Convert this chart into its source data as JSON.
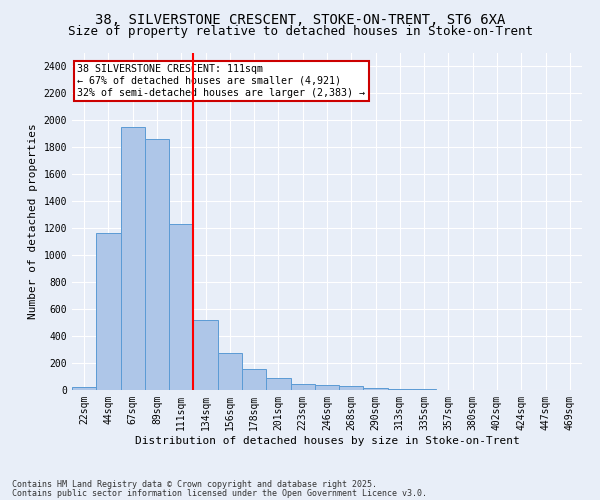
{
  "title_line1": "38, SILVERSTONE CRESCENT, STOKE-ON-TRENT, ST6 6XA",
  "title_line2": "Size of property relative to detached houses in Stoke-on-Trent",
  "xlabel": "Distribution of detached houses by size in Stoke-on-Trent",
  "ylabel": "Number of detached properties",
  "categories": [
    "22sqm",
    "44sqm",
    "67sqm",
    "89sqm",
    "111sqm",
    "134sqm",
    "156sqm",
    "178sqm",
    "201sqm",
    "223sqm",
    "246sqm",
    "268sqm",
    "290sqm",
    "313sqm",
    "335sqm",
    "357sqm",
    "380sqm",
    "402sqm",
    "424sqm",
    "447sqm",
    "469sqm"
  ],
  "values": [
    25,
    1160,
    1950,
    1860,
    1230,
    520,
    275,
    155,
    90,
    45,
    40,
    30,
    18,
    10,
    5,
    3,
    3,
    2,
    2,
    2,
    2
  ],
  "bar_color": "#aec6e8",
  "bar_edge_color": "#5b9bd5",
  "red_line_index": 4,
  "annotation_text": "38 SILVERSTONE CRESCENT: 111sqm\n← 67% of detached houses are smaller (4,921)\n32% of semi-detached houses are larger (2,383) →",
  "annotation_box_color": "#ffffff",
  "annotation_box_edge_color": "#cc0000",
  "footer_line1": "Contains HM Land Registry data © Crown copyright and database right 2025.",
  "footer_line2": "Contains public sector information licensed under the Open Government Licence v3.0.",
  "ylim": [
    0,
    2500
  ],
  "yticks": [
    0,
    200,
    400,
    600,
    800,
    1000,
    1200,
    1400,
    1600,
    1800,
    2000,
    2200,
    2400
  ],
  "bg_color": "#e8eef8",
  "grid_color": "#ffffff",
  "title_fontsize": 10,
  "subtitle_fontsize": 9,
  "axis_label_fontsize": 8,
  "tick_fontsize": 7
}
